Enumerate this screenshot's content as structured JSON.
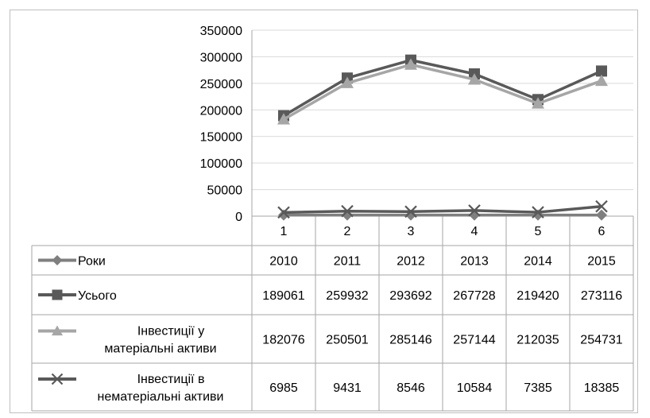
{
  "chart_data": {
    "type": "line",
    "title": "",
    "xlabel": "",
    "ylabel": "",
    "x": [
      "1",
      "2",
      "3",
      "4",
      "5",
      "6"
    ],
    "ylim": [
      0,
      350000
    ],
    "yticks": [
      0,
      50000,
      100000,
      150000,
      200000,
      250000,
      300000,
      350000
    ],
    "grid": "horizontal",
    "legend": "data-table-left",
    "series": [
      {
        "name": "Роки",
        "label_lines": [
          "Роки"
        ],
        "marker": "diamond",
        "color": "#7f7f7f",
        "values": [
          2010,
          2011,
          2012,
          2013,
          2014,
          2015
        ]
      },
      {
        "name": "Усього",
        "label_lines": [
          "Усього"
        ],
        "marker": "square",
        "color": "#595959",
        "values": [
          189061,
          259932,
          293692,
          267728,
          219420,
          273116
        ]
      },
      {
        "name": "Інвестиції у матеріальні активи",
        "label_lines": [
          "Інвестиції у",
          "матеріальні активи"
        ],
        "marker": "triangle",
        "color": "#a6a6a6",
        "values": [
          182076,
          250501,
          285146,
          257144,
          212035,
          254731
        ]
      },
      {
        "name": "Інвестиції в нематеріальні активи",
        "label_lines": [
          "Інвестиції в",
          "нематеріальні активи"
        ],
        "marker": "x",
        "color": "#595959",
        "values": [
          6985,
          9431,
          8546,
          10584,
          7385,
          18385
        ]
      }
    ]
  }
}
